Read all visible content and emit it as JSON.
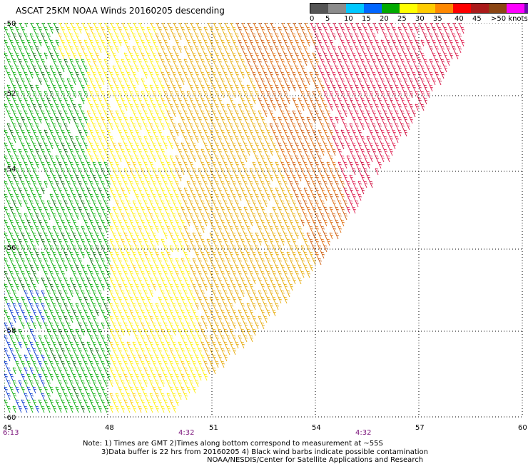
{
  "title": "ASCAT 25KM NOAA Winds 20160205 descending",
  "legend": {
    "ticks": [
      "0",
      "5",
      "10",
      "15",
      "20",
      "25",
      "30",
      "35",
      "40",
      "45"
    ],
    "unit": ">50 knots",
    "colors": [
      "#555555",
      "#8c8c8c",
      "#00c8ff",
      "#0066ff",
      "#00aa00",
      "#ffff00",
      "#ffcc00",
      "#ff8800",
      "#ff0000",
      "#aa1a1a",
      "#8b4513",
      "#ff00ff",
      "#6a0dad"
    ]
  },
  "axes": {
    "y_labels": [
      "-50",
      "-52",
      "-54",
      "-56",
      "-58",
      "-60"
    ],
    "x_labels": [
      "45",
      "48",
      "51",
      "54",
      "57",
      "60"
    ],
    "x_range": [
      45,
      60
    ],
    "y_range": [
      -50,
      -60
    ]
  },
  "times": {
    "left": "6:13",
    "mid": "4:32",
    "right": "4:32"
  },
  "notes": {
    "line1": "Note: 1) Times are GMT 2)Times along bottom correspond to measurement at ~55S",
    "line2": "3)Data buffer is 22 hrs from 20160205 4) Black wind barbs indicate possible contamination",
    "line3": "NOAA/NESDIS/Center for Satellite Applications and Research"
  }
}
